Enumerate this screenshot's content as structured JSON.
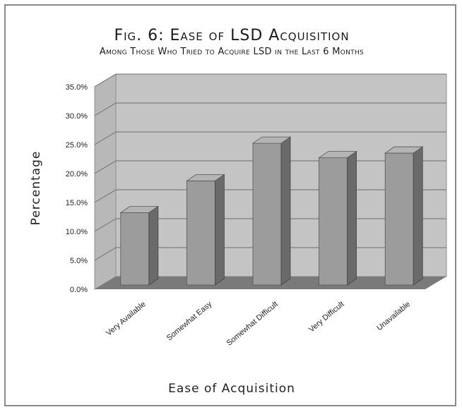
{
  "chart_data": {
    "type": "bar",
    "title": "Fig. 6: Ease of LSD Acquisition",
    "subtitle": "Among Those Who Tried to Acquire LSD in the Last 6 Months",
    "xlabel": "Ease of Acquisition",
    "ylabel": "Percentage",
    "categories": [
      "Very Available",
      "Somewhat Easy",
      "Somewhat Difficult",
      "Very Difficult",
      "Unavailable"
    ],
    "values": [
      12.5,
      18.0,
      24.5,
      22.0,
      22.8
    ],
    "ylim": [
      0,
      35
    ],
    "yticks": [
      "0.0%",
      "5.0%",
      "10.0%",
      "15.0%",
      "20.0%",
      "25.0%",
      "30.0%",
      "35.0%"
    ],
    "grid": true,
    "legend": "none",
    "colors": {
      "bar_front": "#9c9c9c",
      "bar_side": "#6a6a6a",
      "bar_top": "#b4b4b4",
      "wall": "#c4c4c4",
      "side_wall": "#b8b8b8",
      "floor": "#7a7a7a",
      "grid": "#6e6e6e"
    }
  }
}
